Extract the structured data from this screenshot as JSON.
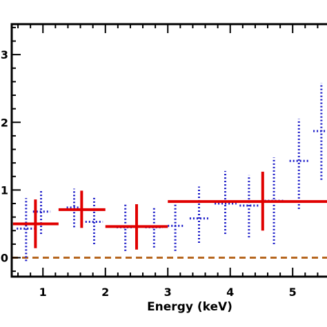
{
  "chart_data": {
    "type": "scatter",
    "title": "",
    "xlabel": "Energy (keV)",
    "ylabel": "",
    "xlim": [
      0.5,
      5.55
    ],
    "ylim": [
      -0.28,
      3.45
    ],
    "x_ticks": [
      {
        "value": 1,
        "label": "1"
      },
      {
        "value": 2,
        "label": "2"
      },
      {
        "value": 3,
        "label": "3"
      },
      {
        "value": 4,
        "label": "4"
      },
      {
        "value": 5,
        "label": "5"
      }
    ],
    "y_ticks": [
      {
        "value": 0,
        "label": "0"
      },
      {
        "value": 1,
        "label": "1"
      },
      {
        "value": 2,
        "label": "2"
      },
      {
        "value": 3,
        "label": "3"
      }
    ],
    "series": [
      {
        "style": "solid-crosses",
        "color": "#e00000",
        "points": [
          {
            "x_lo": 0.52,
            "x_hi": 1.25,
            "y": 0.5,
            "y_lo": 0.14,
            "y_hi": 0.86,
            "x_mid": 0.88
          },
          {
            "x_lo": 1.25,
            "x_hi": 2.0,
            "y": 0.71,
            "y_lo": 0.44,
            "y_hi": 0.99,
            "x_mid": 1.62
          },
          {
            "x_lo": 2.0,
            "x_hi": 3.0,
            "y": 0.46,
            "y_lo": 0.12,
            "y_hi": 0.79,
            "x_mid": 2.5
          },
          {
            "x_lo": 3.0,
            "x_hi": 5.55,
            "y": 0.83,
            "y_lo": 0.4,
            "y_hi": 1.27,
            "x_mid": 4.52
          }
        ]
      },
      {
        "style": "dotted-crosses",
        "color": "#1a1ac8",
        "points": [
          {
            "x": 0.73,
            "x_lo": 0.58,
            "x_hi": 0.88,
            "y": 0.43,
            "y_lo": -0.05,
            "y_hi": 0.88
          },
          {
            "x": 0.97,
            "x_lo": 0.84,
            "x_hi": 1.12,
            "y": 0.68,
            "y_lo": 0.35,
            "y_hi": 1.0
          },
          {
            "x": 1.5,
            "x_lo": 1.38,
            "x_hi": 1.62,
            "y": 0.74,
            "y_lo": 0.45,
            "y_hi": 1.02
          },
          {
            "x": 1.82,
            "x_lo": 1.68,
            "x_hi": 1.96,
            "y": 0.53,
            "y_lo": 0.2,
            "y_hi": 0.9
          },
          {
            "x": 2.32,
            "x_lo": 2.18,
            "x_hi": 2.46,
            "y": 0.45,
            "y_lo": 0.1,
            "y_hi": 0.8
          },
          {
            "x": 2.78,
            "x_lo": 2.64,
            "x_hi": 2.92,
            "y": 0.45,
            "y_lo": 0.15,
            "y_hi": 0.75
          },
          {
            "x": 3.12,
            "x_lo": 3.0,
            "x_hi": 3.25,
            "y": 0.47,
            "y_lo": 0.1,
            "y_hi": 0.85
          },
          {
            "x": 3.5,
            "x_lo": 3.35,
            "x_hi": 3.65,
            "y": 0.58,
            "y_lo": 0.22,
            "y_hi": 1.05
          },
          {
            "x": 3.92,
            "x_lo": 3.75,
            "x_hi": 4.1,
            "y": 0.8,
            "y_lo": 0.35,
            "y_hi": 1.28
          },
          {
            "x": 4.3,
            "x_lo": 4.15,
            "x_hi": 4.45,
            "y": 0.77,
            "y_lo": 0.3,
            "y_hi": 1.22
          },
          {
            "x": 4.7,
            "x_lo": 4.55,
            "x_hi": 4.85,
            "y": 0.84,
            "y_lo": 0.2,
            "y_hi": 1.48
          },
          {
            "x": 5.1,
            "x_lo": 4.95,
            "x_hi": 5.25,
            "y": 1.43,
            "y_lo": 0.72,
            "y_hi": 2.05
          },
          {
            "x": 5.46,
            "x_lo": 5.33,
            "x_hi": 5.55,
            "y": 1.87,
            "y_lo": 1.15,
            "y_hi": 2.58
          }
        ]
      }
    ],
    "reference_lines": [
      {
        "y": 0,
        "color": "#b5651d",
        "style": "dashed"
      }
    ]
  }
}
